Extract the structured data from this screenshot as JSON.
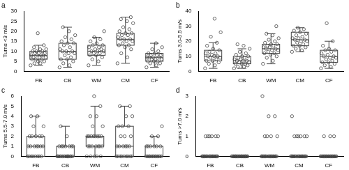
{
  "chart_data": [
    {
      "type": "box",
      "title": "a",
      "y_label": "Turns <3 m/s",
      "categories": [
        "FB",
        "CB",
        "WM",
        "CM",
        "CF"
      ],
      "ylim": [
        0,
        30
      ],
      "yticks": [
        0,
        5,
        10,
        15,
        20,
        25,
        30
      ],
      "grid": false,
      "color": "#444444",
      "boxes": [
        {
          "min": 3,
          "q1": 6,
          "median": 8,
          "q3": 10,
          "max": 13,
          "points": [
            3,
            4,
            4,
            5,
            5,
            6,
            6,
            6,
            7,
            7,
            7,
            8,
            8,
            8,
            8,
            9,
            9,
            9,
            10,
            10,
            10,
            11,
            11,
            12,
            13,
            19
          ]
        },
        {
          "min": 2,
          "q1": 6,
          "median": 10,
          "q3": 14,
          "max": 22,
          "points": [
            2,
            3,
            4,
            5,
            6,
            6,
            7,
            8,
            9,
            9,
            10,
            10,
            10,
            11,
            12,
            13,
            14,
            14,
            15,
            16,
            17,
            18,
            20,
            22
          ]
        },
        {
          "min": 3,
          "q1": 8,
          "median": 10,
          "q3": 13,
          "max": 17,
          "points": [
            3,
            5,
            6,
            7,
            8,
            8,
            9,
            9,
            10,
            10,
            10,
            11,
            11,
            12,
            12,
            13,
            13,
            14,
            15,
            16,
            17,
            20
          ]
        },
        {
          "min": 4,
          "q1": 13,
          "median": 16,
          "q3": 19,
          "max": 27,
          "points": [
            4,
            7,
            9,
            11,
            12,
            13,
            13,
            14,
            15,
            15,
            16,
            16,
            16,
            17,
            18,
            18,
            19,
            19,
            20,
            21,
            22,
            24,
            25,
            26,
            27
          ]
        },
        {
          "min": 2,
          "q1": 5,
          "median": 7,
          "q3": 9,
          "max": 14,
          "points": [
            2,
            3,
            4,
            4,
            5,
            5,
            5,
            6,
            6,
            6,
            7,
            7,
            7,
            7,
            8,
            8,
            8,
            9,
            9,
            10,
            11,
            12,
            14
          ]
        }
      ]
    },
    {
      "type": "box",
      "title": "b",
      "y_label": "Turns 3.0-5.5 m/s",
      "categories": [
        "FB",
        "CB",
        "WM",
        "CM",
        "CF"
      ],
      "ylim": [
        0,
        40
      ],
      "yticks": [
        0,
        10,
        20,
        30,
        40
      ],
      "grid": false,
      "color": "#444444",
      "boxes": [
        {
          "min": 2,
          "q1": 7,
          "median": 10,
          "q3": 14,
          "max": 19,
          "points": [
            2,
            4,
            5,
            6,
            7,
            7,
            8,
            9,
            9,
            10,
            10,
            10,
            11,
            12,
            12,
            13,
            14,
            15,
            17,
            19,
            23,
            26,
            35
          ]
        },
        {
          "min": 2,
          "q1": 5,
          "median": 7,
          "q3": 10,
          "max": 15,
          "points": [
            2,
            3,
            3,
            4,
            5,
            5,
            5,
            6,
            6,
            7,
            7,
            7,
            8,
            8,
            9,
            9,
            10,
            10,
            11,
            12,
            13,
            15,
            17,
            18
          ]
        },
        {
          "min": 5,
          "q1": 12,
          "median": 15,
          "q3": 18,
          "max": 25,
          "points": [
            5,
            7,
            9,
            10,
            11,
            12,
            12,
            13,
            14,
            14,
            15,
            15,
            16,
            16,
            17,
            17,
            18,
            18,
            19,
            20,
            21,
            22,
            24,
            25,
            30
          ]
        },
        {
          "min": 13,
          "q1": 17,
          "median": 21,
          "q3": 26,
          "max": 29,
          "points": [
            13,
            14,
            15,
            16,
            17,
            17,
            18,
            19,
            20,
            20,
            21,
            21,
            22,
            22,
            23,
            24,
            25,
            26,
            27,
            28,
            29
          ]
        },
        {
          "min": 2,
          "q1": 6,
          "median": 10,
          "q3": 14,
          "max": 20,
          "points": [
            2,
            3,
            4,
            5,
            6,
            6,
            7,
            8,
            9,
            9,
            10,
            10,
            11,
            12,
            13,
            14,
            14,
            15,
            17,
            20,
            32
          ]
        }
      ]
    },
    {
      "type": "box",
      "title": "c",
      "y_label": "Turns 5.5-7.0 m/s",
      "categories": [
        "FB",
        "CB",
        "WM",
        "CM",
        "CF"
      ],
      "ylim": [
        0,
        6
      ],
      "yticks": [
        0,
        1,
        2,
        3,
        4,
        5,
        6
      ],
      "grid": false,
      "color": "#444444",
      "boxes": [
        {
          "min": 0,
          "q1": 0,
          "median": 1,
          "q3": 2,
          "max": 4,
          "points": [
            0,
            0,
            0,
            0,
            0,
            0,
            0,
            0,
            1,
            1,
            1,
            1,
            1,
            1,
            1,
            2,
            2,
            2,
            2,
            2,
            3,
            3,
            4,
            4
          ]
        },
        {
          "min": 0,
          "q1": 0,
          "median": 0,
          "q3": 1,
          "max": 3,
          "points": [
            0,
            0,
            0,
            0,
            0,
            0,
            0,
            0,
            0,
            0,
            0,
            0,
            0,
            0,
            0,
            1,
            1,
            1,
            1,
            1,
            1,
            1,
            2,
            3
          ]
        },
        {
          "min": 0,
          "q1": 1,
          "median": 2,
          "q3": 2,
          "max": 5,
          "points": [
            0,
            0,
            0,
            0,
            0,
            1,
            1,
            1,
            1,
            1,
            1,
            1,
            2,
            2,
            2,
            2,
            2,
            2,
            2,
            2,
            3,
            3,
            4,
            4,
            5,
            6
          ]
        },
        {
          "min": 0,
          "q1": 0,
          "median": 1,
          "q3": 3,
          "max": 5,
          "points": [
            0,
            0,
            0,
            0,
            0,
            0,
            0,
            0,
            0,
            1,
            1,
            1,
            1,
            1,
            1,
            2,
            2,
            2,
            3,
            3,
            3,
            4,
            4,
            5,
            5
          ]
        },
        {
          "min": 0,
          "q1": 0,
          "median": 0,
          "q3": 1,
          "max": 2,
          "points": [
            0,
            0,
            0,
            0,
            0,
            0,
            0,
            0,
            0,
            0,
            0,
            0,
            0,
            1,
            1,
            1,
            1,
            1,
            1,
            2,
            2,
            3
          ]
        }
      ]
    },
    {
      "type": "box",
      "title": "d",
      "y_label": "Turns >7.0 m/s",
      "categories": [
        "FB",
        "CB",
        "WM",
        "CM",
        "CF"
      ],
      "ylim": [
        0,
        3
      ],
      "yticks": [
        0,
        1,
        2,
        3
      ],
      "grid": false,
      "color": "#444444",
      "boxes": [
        {
          "min": 0,
          "q1": 0,
          "median": 0,
          "q3": 0,
          "max": 0,
          "points": [
            0,
            0,
            0,
            0,
            0,
            0,
            0,
            0,
            0,
            0,
            0,
            0,
            0,
            0,
            0,
            0,
            0,
            0,
            0,
            0,
            1,
            1,
            1,
            1,
            1,
            1
          ]
        },
        {
          "min": 0,
          "q1": 0,
          "median": 0,
          "q3": 0,
          "max": 0,
          "points": [
            0,
            0,
            0,
            0,
            0,
            0,
            0,
            0,
            0,
            0,
            0,
            0,
            0,
            0,
            0,
            0,
            0,
            0,
            0,
            0,
            0,
            0,
            0,
            0,
            0
          ]
        },
        {
          "min": 0,
          "q1": 0,
          "median": 0,
          "q3": 0,
          "max": 0,
          "points": [
            0,
            0,
            0,
            0,
            0,
            0,
            0,
            0,
            0,
            0,
            0,
            0,
            0,
            0,
            0,
            0,
            0,
            0,
            0,
            0,
            1,
            1,
            1,
            1,
            2,
            2,
            3
          ]
        },
        {
          "min": 0,
          "q1": 0,
          "median": 0,
          "q3": 0,
          "max": 0,
          "points": [
            0,
            0,
            0,
            0,
            0,
            0,
            0,
            0,
            0,
            0,
            0,
            0,
            0,
            0,
            0,
            0,
            0,
            0,
            0,
            0,
            1,
            1,
            1,
            1,
            1,
            1,
            2
          ]
        },
        {
          "min": 0,
          "q1": 0,
          "median": 0,
          "q3": 0,
          "max": 0,
          "points": [
            0,
            0,
            0,
            0,
            0,
            0,
            0,
            0,
            0,
            0,
            0,
            0,
            0,
            0,
            0,
            0,
            0,
            0,
            0,
            0,
            0,
            0,
            1,
            1,
            1
          ]
        }
      ]
    }
  ]
}
